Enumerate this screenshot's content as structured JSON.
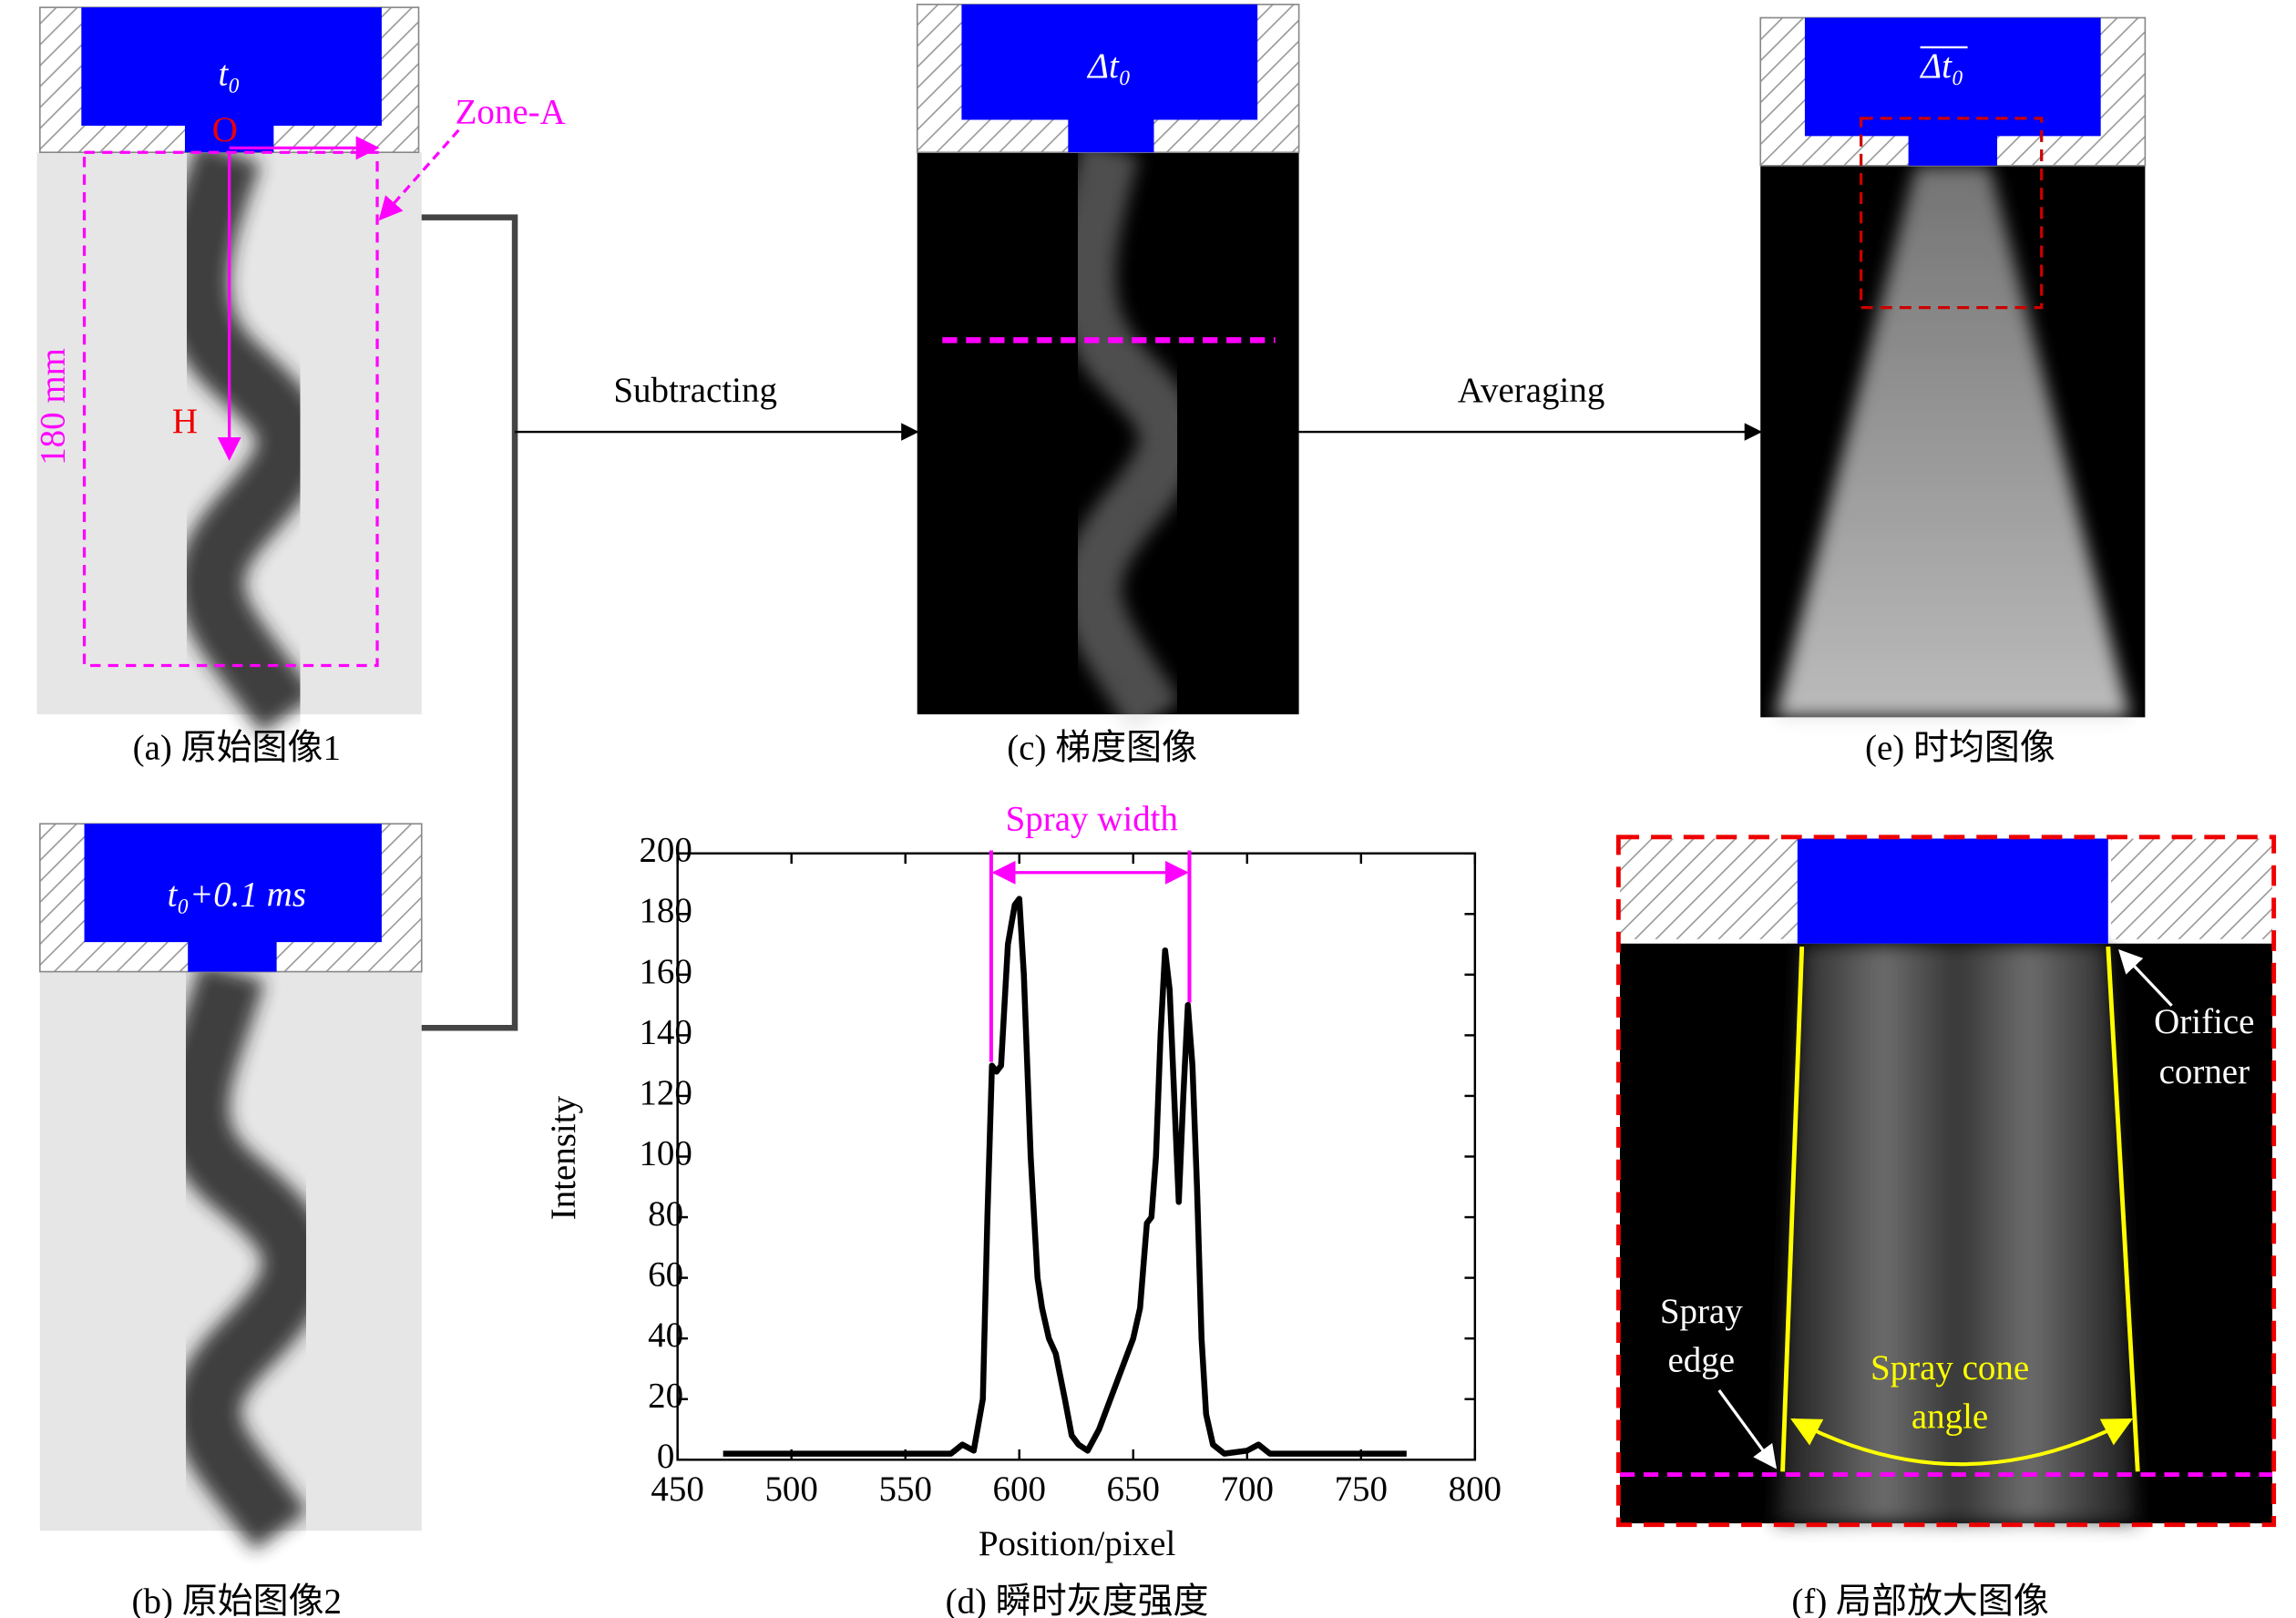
{
  "panels": {
    "a": {
      "caption": "(a) 原始图像1",
      "time": "t₀",
      "origin": "O",
      "axis": "H",
      "height": "180 mm",
      "zone": "Zone-A"
    },
    "b": {
      "caption": "(b) 原始图像2",
      "time": "t₀+0.1 ms"
    },
    "c": {
      "caption": "(c) 梯度图像",
      "time": "Δt₀"
    },
    "e": {
      "caption": "(e) 时均图像",
      "time": "Δt₀"
    },
    "f": {
      "caption": "(f) 局部放大图像",
      "orifice_corner": [
        "Orifice",
        "corner"
      ],
      "spray_edge": [
        "Spray",
        "edge"
      ],
      "cone_angle": [
        "Spray cone",
        "angle"
      ]
    }
  },
  "steps": {
    "subtracting": "Subtracting",
    "averaging": "Averaging"
  },
  "chart_data": {
    "type": "line",
    "caption": "(d) 瞬时灰度强度",
    "annotation": "Spray width",
    "x_label": "Position/pixel",
    "y_label": "Intensity",
    "x": [
      470,
      480,
      490,
      500,
      510,
      520,
      530,
      540,
      550,
      560,
      570,
      575,
      580,
      584,
      586,
      588,
      590,
      592,
      595,
      598,
      600,
      602,
      605,
      608,
      610,
      613,
      616,
      620,
      623,
      626,
      630,
      635,
      640,
      645,
      650,
      653,
      656,
      658,
      660,
      662,
      664,
      666,
      668,
      670,
      672,
      674,
      676,
      678,
      680,
      682,
      685,
      690,
      700,
      705,
      710,
      720,
      730,
      740,
      750,
      760,
      770
    ],
    "series": [
      {
        "name": "Intensity",
        "color": "#000000",
        "values": [
          2,
          2,
          2,
          2,
          2,
          2,
          2,
          2,
          2,
          2,
          2,
          5,
          3,
          20,
          80,
          130,
          128,
          130,
          170,
          183,
          185,
          160,
          100,
          60,
          50,
          40,
          35,
          20,
          8,
          5,
          3,
          10,
          20,
          30,
          40,
          50,
          78,
          80,
          100,
          140,
          168,
          155,
          120,
          85,
          120,
          150,
          130,
          90,
          40,
          15,
          5,
          2,
          3,
          5,
          2,
          2,
          2,
          2,
          2,
          2,
          2
        ]
      }
    ],
    "xlim": [
      450,
      800
    ],
    "xticks": [
      450,
      500,
      550,
      600,
      650,
      700,
      750,
      800
    ],
    "ylim": [
      0,
      200
    ],
    "yticks": [
      0,
      20,
      40,
      60,
      80,
      100,
      120,
      140,
      160,
      180,
      200
    ]
  }
}
